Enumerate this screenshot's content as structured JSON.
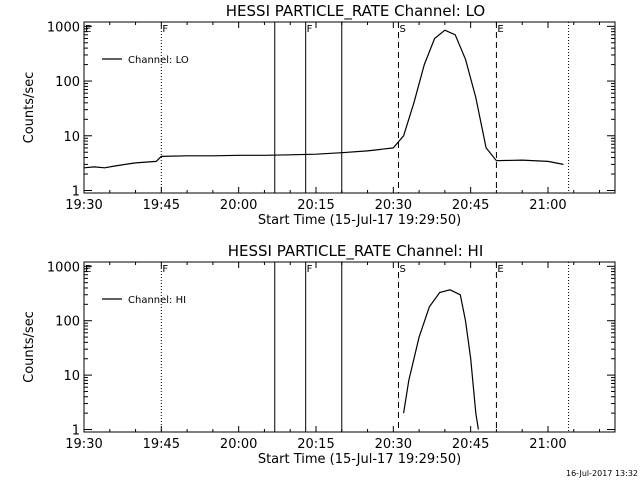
{
  "footer_timestamp": "16-Jul-2017 13:32",
  "colors": {
    "foreground": "#000000",
    "background": "#ffffff"
  },
  "chart_data": [
    {
      "type": "line",
      "title": "HESSI PARTICLE_RATE Channel: LO",
      "xlabel": "Start Time (15-Jul-17 19:29:50)",
      "ylabel": "Counts/sec",
      "yscale": "log",
      "xlim": [
        "19:30",
        "21:13"
      ],
      "ylim": [
        0.9,
        1200
      ],
      "xticks": [
        "19:30",
        "19:45",
        "20:00",
        "20:15",
        "20:30",
        "20:45",
        "21:00"
      ],
      "yticks": [
        "1",
        "10",
        "100",
        "1000"
      ],
      "legend": {
        "label": "Channel: LO",
        "position": "upper-left"
      },
      "markers": [
        {
          "time": "19:30",
          "style": "dotted",
          "label": "E"
        },
        {
          "time": "19:45",
          "style": "dotted",
          "label": "F"
        },
        {
          "time": "20:07",
          "style": "solid",
          "label": ""
        },
        {
          "time": "20:13",
          "style": "solid",
          "label": "F"
        },
        {
          "time": "20:20",
          "style": "solid",
          "label": ""
        },
        {
          "time": "20:31",
          "style": "dashed",
          "label": "S"
        },
        {
          "time": "20:50",
          "style": "dashed",
          "label": "E"
        },
        {
          "time": "21:04",
          "style": "dotted",
          "label": ""
        }
      ],
      "series": [
        {
          "name": "Channel: LO",
          "points": [
            [
              "19:30",
              2.6
            ],
            [
              "19:32",
              2.7
            ],
            [
              "19:34",
              2.6
            ],
            [
              "19:36",
              2.8
            ],
            [
              "19:38",
              3.0
            ],
            [
              "19:40",
              3.2
            ],
            [
              "19:42",
              3.3
            ],
            [
              "19:44",
              3.4
            ],
            [
              "19:45",
              4.2
            ],
            [
              "19:50",
              4.3
            ],
            [
              "19:55",
              4.3
            ],
            [
              "20:00",
              4.4
            ],
            [
              "20:05",
              4.4
            ],
            [
              "20:10",
              4.5
            ],
            [
              "20:15",
              4.6
            ],
            [
              "20:20",
              4.9
            ],
            [
              "20:25",
              5.3
            ],
            [
              "20:30",
              6.0
            ],
            [
              "20:32",
              10
            ],
            [
              "20:34",
              40
            ],
            [
              "20:36",
              200
            ],
            [
              "20:38",
              600
            ],
            [
              "20:40",
              850
            ],
            [
              "20:42",
              700
            ],
            [
              "20:44",
              250
            ],
            [
              "20:46",
              50
            ],
            [
              "20:48",
              6
            ],
            [
              "20:50",
              3.5
            ],
            [
              "20:55",
              3.6
            ],
            [
              "21:00",
              3.4
            ],
            [
              "21:03",
              3.0
            ]
          ]
        }
      ]
    },
    {
      "type": "line",
      "title": "HESSI PARTICLE_RATE Channel: HI",
      "xlabel": "Start Time (15-Jul-17 19:29:50)",
      "ylabel": "Counts/sec",
      "yscale": "log",
      "xlim": [
        "19:30",
        "21:13"
      ],
      "ylim": [
        0.9,
        1200
      ],
      "xticks": [
        "19:30",
        "19:45",
        "20:00",
        "20:15",
        "20:30",
        "20:45",
        "21:00"
      ],
      "yticks": [
        "1",
        "10",
        "100",
        "1000"
      ],
      "legend": {
        "label": "Channel: HI",
        "position": "upper-left"
      },
      "markers": [
        {
          "time": "19:30",
          "style": "dotted",
          "label": "E"
        },
        {
          "time": "19:45",
          "style": "dotted",
          "label": "F"
        },
        {
          "time": "20:07",
          "style": "solid",
          "label": ""
        },
        {
          "time": "20:13",
          "style": "solid",
          "label": "F"
        },
        {
          "time": "20:20",
          "style": "solid",
          "label": ""
        },
        {
          "time": "20:31",
          "style": "dashed",
          "label": "S"
        },
        {
          "time": "20:50",
          "style": "dashed",
          "label": "E"
        },
        {
          "time": "21:04",
          "style": "dotted",
          "label": ""
        }
      ],
      "series": [
        {
          "name": "Channel: HI",
          "points": [
            [
              "20:32",
              2
            ],
            [
              "20:33",
              8
            ],
            [
              "20:35",
              50
            ],
            [
              "20:37",
              180
            ],
            [
              "20:39",
              330
            ],
            [
              "20:41",
              370
            ],
            [
              "20:43",
              300
            ],
            [
              "20:44",
              100
            ],
            [
              "20:45",
              20
            ],
            [
              "20:46",
              2
            ],
            [
              "20:46.5",
              1
            ]
          ]
        }
      ]
    }
  ]
}
